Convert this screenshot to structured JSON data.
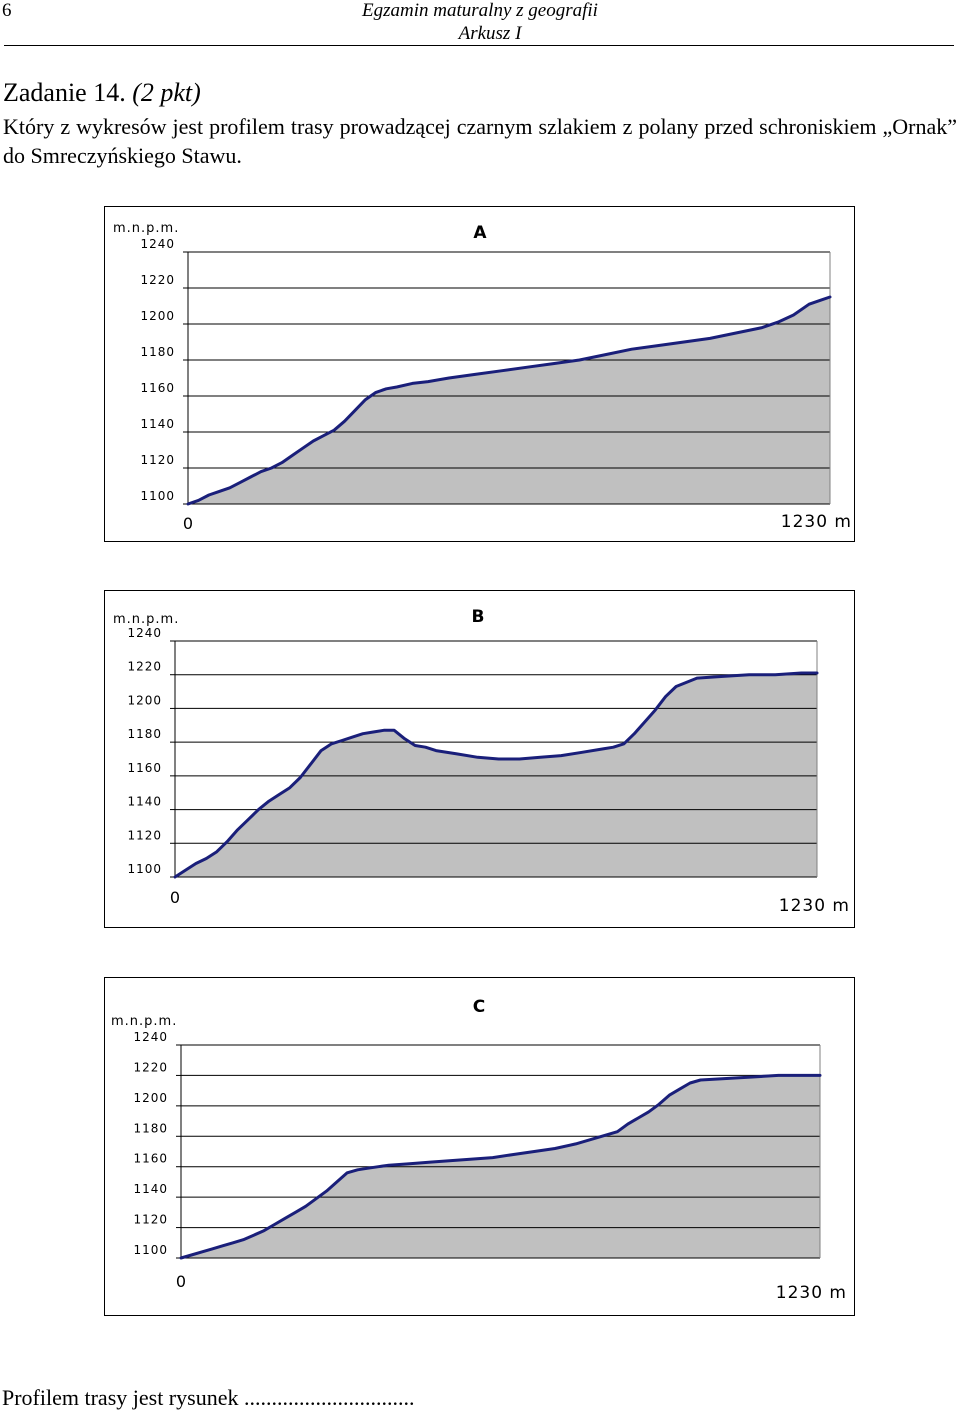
{
  "header": {
    "page_number": "6",
    "title": "Egzamin maturalny z geografii",
    "subtitle": "Arkusz  I"
  },
  "task": {
    "title": "Zadanie 14.",
    "points": "(2 pkt)",
    "question": "Który z wykresów jest profilem trasy prowadzącej czarnym szlakiem z polany przed schroniskiem „Ornak” do Smreczyńskiego Stawu."
  },
  "answer_line": "Profilem trasy jest rysunek ...............................",
  "chart_data": [
    {
      "type": "area",
      "title": "A",
      "ylabel": "m.n.p.m.",
      "yticks": [
        1240,
        1220,
        1200,
        1180,
        1160,
        1140,
        1120,
        1100
      ],
      "ylim": [
        1100,
        1240
      ],
      "xlim": [
        0,
        1230
      ],
      "xtick_start": "0",
      "xtick_end": "1230 m",
      "grid": true,
      "color_line": "#1a1f7a",
      "color_fill": "#c0c0c0",
      "x": [
        0,
        20,
        40,
        60,
        80,
        100,
        120,
        140,
        160,
        180,
        200,
        220,
        240,
        260,
        280,
        300,
        320,
        340,
        360,
        380,
        400,
        430,
        460,
        500,
        550,
        600,
        650,
        700,
        750,
        800,
        850,
        900,
        950,
        1000,
        1050,
        1100,
        1130,
        1160,
        1190,
        1210,
        1230
      ],
      "y": [
        1100,
        1102,
        1105,
        1107,
        1109,
        1112,
        1115,
        1118,
        1120,
        1123,
        1127,
        1131,
        1135,
        1138,
        1141,
        1146,
        1152,
        1158,
        1162,
        1164,
        1165,
        1167,
        1168,
        1170,
        1172,
        1174,
        1176,
        1178,
        1180,
        1183,
        1186,
        1188,
        1190,
        1192,
        1195,
        1198,
        1201,
        1205,
        1211,
        1213,
        1215
      ]
    },
    {
      "type": "area",
      "title": "B",
      "ylabel": "m.n.p.m.",
      "yticks": [
        1240,
        1220,
        1200,
        1180,
        1160,
        1140,
        1120,
        1100
      ],
      "ylim": [
        1100,
        1240
      ],
      "xlim": [
        0,
        1230
      ],
      "xtick_start": "0",
      "xtick_end": "1230 m",
      "grid": true,
      "color_line": "#1a1f7a",
      "color_fill": "#c0c0c0",
      "x": [
        0,
        20,
        40,
        60,
        80,
        100,
        120,
        140,
        160,
        180,
        200,
        220,
        240,
        260,
        280,
        300,
        320,
        340,
        360,
        380,
        400,
        420,
        440,
        460,
        480,
        500,
        540,
        580,
        620,
        660,
        700,
        740,
        780,
        820,
        840,
        860,
        880,
        900,
        920,
        940,
        960,
        1000,
        1050,
        1100,
        1150,
        1200,
        1230
      ],
      "y": [
        1100,
        1104,
        1108,
        1111,
        1115,
        1121,
        1128,
        1134,
        1140,
        1145,
        1149,
        1153,
        1159,
        1167,
        1175,
        1179,
        1181,
        1183,
        1185,
        1186,
        1187,
        1187,
        1182,
        1178,
        1177,
        1175,
        1173,
        1171,
        1170,
        1170,
        1171,
        1172,
        1174,
        1176,
        1177,
        1179,
        1185,
        1192,
        1199,
        1207,
        1213,
        1218,
        1219,
        1220,
        1220,
        1221,
        1221
      ]
    },
    {
      "type": "area",
      "title": "C",
      "ylabel": "m.n.p.m.",
      "yticks": [
        1240,
        1220,
        1200,
        1180,
        1160,
        1140,
        1120,
        1100
      ],
      "ylim": [
        1100,
        1240
      ],
      "xlim": [
        0,
        1230
      ],
      "xtick_start": "0",
      "xtick_end": "1230 m",
      "grid": true,
      "color_line": "#1a1f7a",
      "color_fill": "#c0c0c0",
      "x": [
        0,
        20,
        40,
        60,
        80,
        100,
        120,
        140,
        160,
        180,
        200,
        220,
        240,
        260,
        280,
        300,
        320,
        340,
        360,
        380,
        400,
        440,
        480,
        520,
        560,
        600,
        640,
        680,
        720,
        760,
        800,
        840,
        860,
        880,
        900,
        920,
        940,
        960,
        980,
        1000,
        1050,
        1100,
        1150,
        1200,
        1230
      ],
      "y": [
        1100,
        1102,
        1104,
        1106,
        1108,
        1110,
        1112,
        1115,
        1118,
        1122,
        1126,
        1130,
        1134,
        1139,
        1144,
        1150,
        1156,
        1158,
        1159,
        1160,
        1161,
        1162,
        1163,
        1164,
        1165,
        1166,
        1168,
        1170,
        1172,
        1175,
        1179,
        1183,
        1188,
        1192,
        1196,
        1201,
        1207,
        1211,
        1215,
        1217,
        1218,
        1219,
        1220,
        1220,
        1220
      ]
    }
  ]
}
